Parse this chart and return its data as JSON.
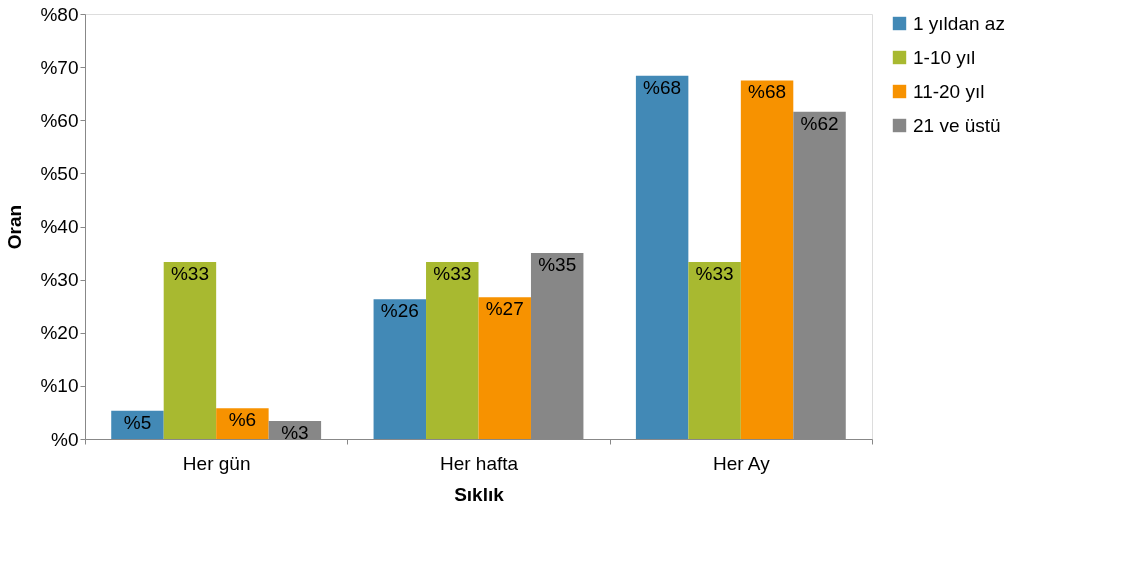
{
  "chart_data": {
    "type": "bar",
    "xlabel": "Sıklık",
    "ylabel": "Oran",
    "categories": [
      "Her gün",
      "Her hafta",
      "Her Ay"
    ],
    "series": [
      {
        "name": "1 yıldan az",
        "color": "#4289b6",
        "values": [
          5.3,
          26.3,
          68.4
        ],
        "value_labels": [
          "%5",
          "%26",
          "%68"
        ]
      },
      {
        "name": "1-10 yıl",
        "color": "#a8b930",
        "values": [
          33.3,
          33.3,
          33.3
        ],
        "value_labels": [
          "%33",
          "%33",
          "%33"
        ]
      },
      {
        "name": "11-20 yıl",
        "color": "#f79200",
        "values": [
          5.8,
          26.7,
          67.5
        ],
        "value_labels": [
          "%6",
          "%27",
          "%68"
        ]
      },
      {
        "name": "21 ve üstü",
        "color": "#878787",
        "values": [
          3.4,
          35.0,
          61.6
        ],
        "value_labels": [
          "%3",
          "%35",
          "%62"
        ]
      }
    ],
    "ylim": [
      0,
      80
    ],
    "yticks": [
      {
        "value": 0,
        "label": "%0"
      },
      {
        "value": 10,
        "label": "%10"
      },
      {
        "value": 20,
        "label": "%20"
      },
      {
        "value": 30,
        "label": "%30"
      },
      {
        "value": 40,
        "label": "%40"
      },
      {
        "value": 50,
        "label": "%50"
      },
      {
        "value": 60,
        "label": "%60"
      },
      {
        "value": 70,
        "label": "%70"
      },
      {
        "value": 80,
        "label": "%80"
      }
    ],
    "grid": false,
    "legend": "right"
  }
}
